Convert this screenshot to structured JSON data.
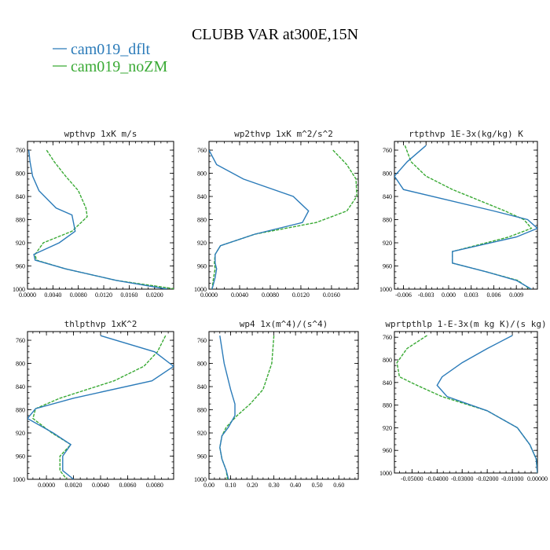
{
  "title": "CLUBB VAR at300E,15N",
  "legend": [
    {
      "label": "cam019_dflt",
      "color": "#2b7bb9"
    },
    {
      "label": "cam019_noZM",
      "color": "#3aaa35"
    }
  ],
  "chart_data": [
    {
      "type": "line",
      "title": "wpthvp   1xK m/s",
      "xlim": [
        0.0,
        0.023
      ],
      "ylim": [
        745,
        1000
      ],
      "y_inverted": true,
      "xticks": [
        "0.0000",
        "0.0040",
        "0.0080",
        "0.0120",
        "0.0160",
        "0.0200"
      ],
      "xtick_values": [
        0.0,
        0.004,
        0.008,
        0.012,
        0.016,
        0.02
      ],
      "yticks": [
        760,
        800,
        840,
        880,
        920,
        960,
        1000
      ],
      "series": [
        {
          "name": "cam019_dflt",
          "color": "#2b7bb9",
          "x": [
            0.0002,
            0.0004,
            0.0008,
            0.0018,
            0.0045,
            0.007,
            0.0075,
            0.005,
            0.001,
            0.0012,
            0.006,
            0.014,
            0.022
          ],
          "y": [
            760,
            780,
            805,
            830,
            860,
            872,
            900,
            920,
            940,
            950,
            965,
            985,
            1000
          ]
        },
        {
          "name": "cam019_noZM",
          "color": "#3aaa35",
          "x": [
            0.003,
            0.0042,
            0.006,
            0.008,
            0.0092,
            0.0094,
            0.007,
            0.0025,
            0.0012,
            0.0014,
            0.006,
            0.014,
            0.0235
          ],
          "y": [
            760,
            780,
            805,
            830,
            860,
            875,
            900,
            920,
            940,
            950,
            965,
            985,
            1000
          ]
        }
      ]
    },
    {
      "type": "line",
      "title": "wp2thvp   1xK m^2/s^2",
      "xlim": [
        0.0,
        0.0195
      ],
      "ylim": [
        745,
        1000
      ],
      "y_inverted": true,
      "xticks": [
        "0.0000",
        "0.0040",
        "0.0080",
        "0.0120",
        "0.0160"
      ],
      "xtick_values": [
        0.0,
        0.004,
        0.008,
        0.012,
        0.016
      ],
      "yticks": [
        760,
        800,
        840,
        880,
        920,
        960,
        1000
      ],
      "series": [
        {
          "name": "cam019_dflt",
          "color": "#2b7bb9",
          "x": [
            0.0,
            0.001,
            0.0045,
            0.011,
            0.013,
            0.0122,
            0.006,
            0.0015,
            0.0008,
            0.0008,
            0.001,
            0.0008,
            0.0004
          ],
          "y": [
            760,
            785,
            810,
            840,
            865,
            885,
            905,
            925,
            940,
            955,
            965,
            980,
            1000
          ]
        },
        {
          "name": "cam019_noZM",
          "color": "#3aaa35",
          "x": [
            0.0162,
            0.018,
            0.0192,
            0.0193,
            0.018,
            0.014,
            0.006,
            0.0015,
            0.0008,
            0.0007,
            0.0008,
            0.0006,
            0.0004
          ],
          "y": [
            760,
            785,
            810,
            840,
            865,
            885,
            905,
            925,
            940,
            955,
            965,
            980,
            1000
          ]
        }
      ]
    },
    {
      "type": "line",
      "title": "rtpthvp   1E-3x(kg/kg) K",
      "xlim": [
        -0.0072,
        0.0118
      ],
      "ylim": [
        745,
        1000
      ],
      "y_inverted": true,
      "xticks": [
        "-0.006",
        "-0.003",
        "0.000",
        "0.003",
        "0.006",
        "0.009"
      ],
      "xtick_values": [
        -0.006,
        -0.003,
        0.0,
        0.003,
        0.006,
        0.009
      ],
      "yticks": [
        760,
        800,
        840,
        880,
        920,
        960,
        1000
      ],
      "series": [
        {
          "name": "cam019_dflt",
          "color": "#2b7bb9",
          "x": [
            -0.003,
            -0.0055,
            -0.0072,
            -0.006,
            0.006,
            0.0105,
            0.0118,
            0.009,
            0.0005,
            0.0005,
            0.005,
            0.009,
            0.011
          ],
          "y": [
            752,
            780,
            805,
            828,
            865,
            880,
            895,
            910,
            935,
            955,
            970,
            985,
            1000
          ]
        },
        {
          "name": "cam019_noZM",
          "color": "#3aaa35",
          "x": [
            -0.0058,
            -0.005,
            -0.003,
            0.0005,
            0.0075,
            0.01,
            0.011,
            0.008,
            0.0005,
            0.0005,
            0.005,
            0.0092,
            0.0108
          ],
          "y": [
            752,
            780,
            805,
            828,
            865,
            880,
            895,
            910,
            935,
            955,
            970,
            985,
            1000
          ]
        }
      ]
    },
    {
      "type": "line",
      "title": "thlpthvp   1xK^2",
      "xlim": [
        -0.0014,
        0.0094
      ],
      "ylim": [
        745,
        1000
      ],
      "y_inverted": true,
      "xticks": [
        "0.0000",
        "0.0020",
        "0.0040",
        "0.0060",
        "0.0080"
      ],
      "xtick_values": [
        0.0,
        0.002,
        0.004,
        0.006,
        0.008
      ],
      "yticks": [
        760,
        800,
        840,
        880,
        920,
        960,
        1000
      ],
      "series": [
        {
          "name": "cam019_dflt",
          "color": "#2b7bb9",
          "x": [
            0.004,
            0.008,
            0.0094,
            0.0078,
            0.002,
            -0.0008,
            -0.0014,
            0.0005,
            0.0018,
            0.0012,
            0.0012,
            0.002
          ],
          "y": [
            752,
            780,
            805,
            830,
            860,
            878,
            895,
            920,
            940,
            960,
            985,
            1000
          ]
        },
        {
          "name": "cam019_noZM",
          "color": "#3aaa35",
          "x": [
            0.0088,
            0.0082,
            0.0072,
            0.005,
            0.001,
            -0.0008,
            -0.001,
            0.0004,
            0.0018,
            0.001,
            0.001,
            0.0015
          ],
          "y": [
            752,
            780,
            805,
            830,
            860,
            878,
            895,
            920,
            940,
            960,
            985,
            1000
          ]
        }
      ]
    },
    {
      "type": "line",
      "title": "wp4   1x(m^4)/(s^4)",
      "xlim": [
        0.0,
        0.69
      ],
      "ylim": [
        745,
        1000
      ],
      "y_inverted": true,
      "xticks": [
        "0.00",
        "0.10",
        "0.20",
        "0.30",
        "0.40",
        "0.50",
        "0.60"
      ],
      "xtick_values": [
        0.0,
        0.1,
        0.2,
        0.3,
        0.4,
        0.5,
        0.6
      ],
      "yticks": [
        760,
        800,
        840,
        880,
        920,
        960,
        1000
      ],
      "series": [
        {
          "name": "cam019_dflt",
          "color": "#2b7bb9",
          "x": [
            0.05,
            0.07,
            0.1,
            0.12,
            0.12,
            0.09,
            0.06,
            0.05,
            0.06,
            0.08,
            0.09
          ],
          "y": [
            752,
            800,
            845,
            870,
            890,
            910,
            925,
            945,
            965,
            985,
            1000
          ]
        },
        {
          "name": "cam019_noZM",
          "color": "#3aaa35",
          "x": [
            0.3,
            0.29,
            0.25,
            0.19,
            0.13,
            0.08,
            0.06,
            0.05,
            0.06,
            0.08,
            0.085
          ],
          "y": [
            752,
            800,
            845,
            870,
            890,
            910,
            925,
            945,
            965,
            985,
            1000
          ]
        }
      ]
    },
    {
      "type": "line",
      "title": "wprtpthlp   1-E-3x(m kg K)/(s kg)",
      "xlim": [
        -0.057,
        0.0
      ],
      "ylim": [
        750,
        1000
      ],
      "y_inverted": true,
      "xticks": [
        "-0.05000",
        "-0.04000",
        "-0.03000",
        "-0.02000",
        "-0.01000",
        "0.00000"
      ],
      "xtick_values": [
        -0.05,
        -0.04,
        -0.03,
        -0.02,
        -0.01,
        0.0
      ],
      "yticks": [
        760,
        800,
        840,
        880,
        920,
        960,
        1000
      ],
      "series": [
        {
          "name": "cam019_dflt",
          "color": "#2b7bb9",
          "x": [
            -0.01,
            -0.02,
            -0.03,
            -0.038,
            -0.04,
            -0.036,
            -0.02,
            -0.008,
            -0.003,
            -0.0005,
            0.0
          ],
          "y": [
            757,
            780,
            805,
            830,
            845,
            865,
            890,
            920,
            950,
            975,
            1000
          ]
        },
        {
          "name": "cam019_noZM",
          "color": "#3aaa35",
          "x": [
            -0.044,
            -0.052,
            -0.056,
            -0.055,
            -0.048,
            -0.038,
            -0.02,
            -0.008,
            -0.003,
            -0.0005,
            0.0
          ],
          "y": [
            757,
            780,
            805,
            830,
            845,
            865,
            890,
            920,
            950,
            975,
            1000
          ]
        }
      ]
    }
  ]
}
